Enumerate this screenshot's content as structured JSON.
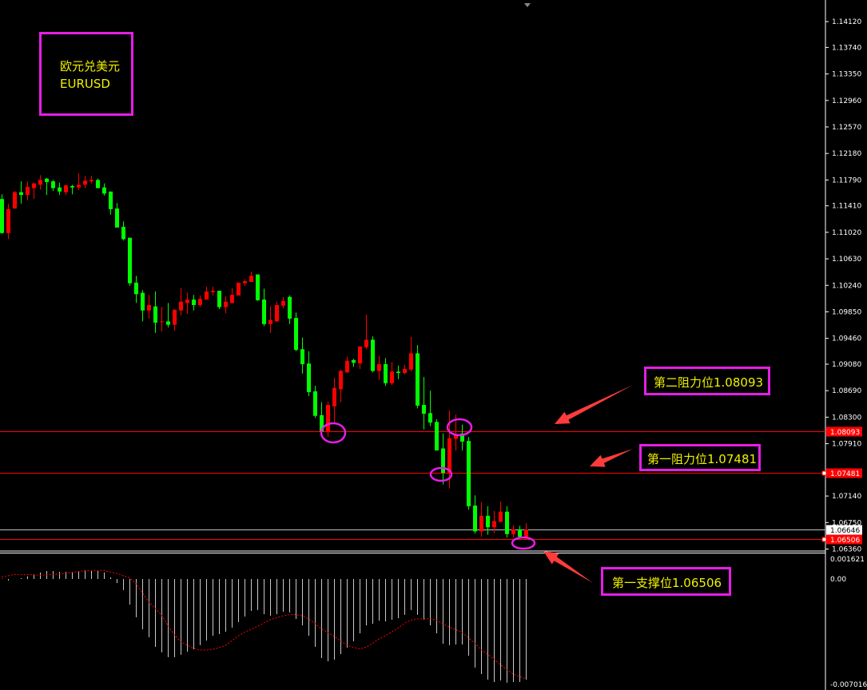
{
  "chart_data": {
    "type": "candlestick",
    "symbol_label": "欧元兑美元",
    "symbol": "EURUSD",
    "up_color": "#ff0000",
    "down_color": "#00ff00",
    "price_axis": {
      "range": [
        1.063,
        1.142
      ],
      "ticks": [
        "1.14120",
        "1.13740",
        "1.13350",
        "1.12960",
        "1.12570",
        "1.12180",
        "1.11790",
        "1.11410",
        "1.11020",
        "1.10630",
        "1.10240",
        "1.09850",
        "1.09460",
        "1.09080",
        "1.08690",
        "1.08300",
        "1.07910",
        "1.07140",
        "1.06750",
        "1.06360"
      ]
    },
    "candles_ohlc": [
      [
        1.1151,
        1.1158,
        1.11,
        1.1101
      ],
      [
        1.1101,
        1.1144,
        1.1092,
        1.1136
      ],
      [
        1.1137,
        1.1163,
        1.1137,
        1.1161
      ],
      [
        1.1161,
        1.1177,
        1.1144,
        1.1157
      ],
      [
        1.1157,
        1.1177,
        1.1149,
        1.1169
      ],
      [
        1.1167,
        1.1175,
        1.1151,
        1.1174
      ],
      [
        1.1172,
        1.1186,
        1.1165,
        1.1179
      ],
      [
        1.1181,
        1.1182,
        1.1157,
        1.1176
      ],
      [
        1.1177,
        1.1179,
        1.1163,
        1.1167
      ],
      [
        1.1168,
        1.1175,
        1.1157,
        1.1162
      ],
      [
        1.1161,
        1.1172,
        1.1157,
        1.1171
      ],
      [
        1.117,
        1.1172,
        1.1158,
        1.1168
      ],
      [
        1.1168,
        1.1189,
        1.1164,
        1.1172
      ],
      [
        1.1172,
        1.1185,
        1.1167,
        1.1178
      ],
      [
        1.1177,
        1.1185,
        1.1174,
        1.1179
      ],
      [
        1.1179,
        1.1181,
        1.1167,
        1.1167
      ],
      [
        1.1168,
        1.1174,
        1.1156,
        1.1159
      ],
      [
        1.1162,
        1.1162,
        1.1128,
        1.1136
      ],
      [
        1.1137,
        1.1145,
        1.1109,
        1.1109
      ],
      [
        1.111,
        1.1118,
        1.109,
        1.1092
      ],
      [
        1.1094,
        1.1094,
        1.1023,
        1.1027
      ],
      [
        1.1028,
        1.1038,
        1.0998,
        1.1011
      ],
      [
        1.1013,
        1.1017,
        1.0971,
        1.0987
      ],
      [
        1.0987,
        1.101,
        1.0975,
        1.0995
      ],
      [
        1.0993,
        1.1015,
        1.0954,
        1.0969
      ],
      [
        1.097,
        1.0992,
        1.0956,
        1.0971
      ],
      [
        1.0971,
        1.0998,
        1.0962,
        1.0966
      ],
      [
        1.0966,
        1.0989,
        1.0957,
        1.0988
      ],
      [
        1.0987,
        1.102,
        1.098,
        1.1
      ],
      [
        1.0998,
        1.1013,
        1.0982,
        1.1003
      ],
      [
        1.1003,
        1.101,
        1.0987,
        1.0995
      ],
      [
        1.0995,
        1.1009,
        1.0992,
        1.1004
      ],
      [
        1.1003,
        1.1022,
        1.1003,
        1.1015
      ],
      [
        1.1014,
        1.1022,
        1.1009,
        1.1016
      ],
      [
        1.1016,
        1.1016,
        1.0989,
        1.0992
      ],
      [
        1.0992,
        1.1008,
        1.0983,
        1.1
      ],
      [
        1.0998,
        1.102,
        1.0997,
        1.101
      ],
      [
        1.1009,
        1.1028,
        1.1009,
        1.1028
      ],
      [
        1.1027,
        1.1033,
        1.1023,
        1.103
      ],
      [
        1.1029,
        1.1044,
        1.1029,
        1.1038
      ],
      [
        1.104,
        1.104,
        1.1001,
        1.1002
      ],
      [
        1.1003,
        1.1019,
        1.0964,
        1.0967
      ],
      [
        1.0967,
        1.0993,
        1.0954,
        1.0973
      ],
      [
        1.0971,
        1.1,
        1.097,
        1.0995
      ],
      [
        1.0994,
        1.1007,
        1.099,
        1.1001
      ],
      [
        1.1007,
        1.1009,
        1.0967,
        1.0975
      ],
      [
        1.0976,
        1.0984,
        1.0927,
        1.0929
      ],
      [
        1.093,
        1.0947,
        1.0894,
        1.0908
      ],
      [
        1.0909,
        1.0927,
        1.0861,
        1.0867
      ],
      [
        1.0868,
        1.0876,
        1.0829,
        1.0832
      ],
      [
        1.0833,
        1.0852,
        1.0809,
        1.0809
      ],
      [
        1.0808,
        1.0853,
        1.0801,
        1.0848
      ],
      [
        1.0846,
        1.0888,
        1.0822,
        1.0873
      ],
      [
        1.0871,
        1.09,
        1.0852,
        1.0898
      ],
      [
        1.0896,
        1.0919,
        1.0895,
        1.0913
      ],
      [
        1.0914,
        1.0916,
        1.0904,
        1.091
      ],
      [
        1.0909,
        1.0934,
        1.0901,
        1.0934
      ],
      [
        1.0933,
        1.0981,
        1.093,
        1.0944
      ],
      [
        1.0944,
        1.0949,
        1.0896,
        1.0898
      ],
      [
        1.0898,
        1.092,
        1.0885,
        1.0908
      ],
      [
        1.0908,
        1.0917,
        1.0876,
        1.088
      ],
      [
        1.088,
        1.0911,
        1.0877,
        1.0897
      ],
      [
        1.0897,
        1.0906,
        1.0886,
        1.0895
      ],
      [
        1.0895,
        1.0907,
        1.0893,
        1.0901
      ],
      [
        1.09,
        1.0948,
        1.0897,
        1.0924
      ],
      [
        1.0924,
        1.0936,
        1.0843,
        1.0847
      ],
      [
        1.0848,
        1.0889,
        1.0812,
        1.0835
      ],
      [
        1.0836,
        1.0869,
        1.0817,
        1.0822
      ],
      [
        1.0823,
        1.0827,
        1.0781,
        1.0781
      ],
      [
        1.0784,
        1.0806,
        1.0731,
        1.0748
      ],
      [
        1.0748,
        1.084,
        1.0725,
        1.0799
      ],
      [
        1.0798,
        1.0834,
        1.0781,
        1.0804
      ],
      [
        1.0806,
        1.0819,
        1.0781,
        1.0794
      ],
      [
        1.0795,
        1.0801,
        1.0694,
        1.0699
      ],
      [
        1.07,
        1.0715,
        1.0659,
        1.0662
      ],
      [
        1.0662,
        1.0705,
        1.0654,
        1.0685
      ],
      [
        1.0685,
        1.0699,
        1.0657,
        1.0668
      ],
      [
        1.0668,
        1.0692,
        1.0659,
        1.0677
      ],
      [
        1.0676,
        1.0706,
        1.0676,
        1.0691
      ],
      [
        1.0691,
        1.0699,
        1.0653,
        1.0658
      ],
      [
        1.0658,
        1.0671,
        1.0653,
        1.0665
      ],
      [
        1.0665,
        1.067,
        1.0654,
        1.0654
      ],
      [
        1.0654,
        1.0674,
        1.0654,
        1.06646
      ]
    ],
    "levels": [
      {
        "price": 1.08093,
        "label": "1.08093",
        "color": "#ff0000",
        "annotation": "第二阻力位1.08093"
      },
      {
        "price": 1.07481,
        "label": "1.07481",
        "color": "#ff0000",
        "annotation": "第一阻力位1.07481"
      },
      {
        "price": 1.06506,
        "label": "1.06506",
        "color": "#ff0000",
        "annotation": "第一支撑位1.06506"
      }
    ],
    "current_price": {
      "price": 1.06646,
      "label": "1.06646",
      "color": "#c0c0c0"
    },
    "indicator": {
      "type": "macd",
      "axis_labels": [
        "0.001621",
        "0.00",
        "-0.007016"
      ],
      "range": [
        -0.007016,
        0.001621
      ],
      "histogram_color": "#c8c8c8",
      "signal_color": "#ff0000",
      "histogram": [
        2e-05,
        -0.0001,
        0,
        5e-05,
        0.00018,
        0.00032,
        0.00043,
        0.00053,
        0.00053,
        0.00048,
        0.00048,
        0.00048,
        0.00053,
        0.00059,
        0.00053,
        0.00053,
        0.00043,
        0.00011,
        -0.00027,
        -0.00074,
        -0.0017,
        -0.00255,
        -0.00335,
        -0.00388,
        -0.00452,
        -0.00489,
        -0.00521,
        -0.00521,
        -0.00505,
        -0.00484,
        -0.00468,
        -0.00441,
        -0.0041,
        -0.00378,
        -0.00367,
        -0.00351,
        -0.00324,
        -0.00287,
        -0.0025,
        -0.00213,
        -0.00207,
        -0.00234,
        -0.00245,
        -0.00234,
        -0.00218,
        -0.00223,
        -0.00266,
        -0.00309,
        -0.00378,
        -0.00452,
        -0.00527,
        -0.00548,
        -0.00537,
        -0.005,
        -0.00457,
        -0.00415,
        -0.00362,
        -0.00309,
        -0.00298,
        -0.00277,
        -0.00282,
        -0.00271,
        -0.00261,
        -0.00239,
        -0.00207,
        -0.00239,
        -0.00271,
        -0.00309,
        -0.00362,
        -0.00431,
        -0.00441,
        -0.00436,
        -0.00436,
        -0.00511,
        -0.0059,
        -0.00633,
        -0.0067,
        -0.00686,
        -0.00676,
        -0.00691,
        -0.00686,
        -0.00686,
        -0.0067
      ],
      "signal": [
        0.00014,
        0.00022,
        0.0003,
        0.0003,
        0.0003,
        0.00028,
        0.00025,
        0.00028,
        0.0003,
        0.00034,
        0.00037,
        0.00044,
        0.0005,
        0.00054,
        0.00057,
        0.00057,
        0.00057,
        0.00047,
        0.00037,
        0.00023,
        9e-05,
        -0.0003,
        -0.0009,
        -0.00151,
        -0.00195,
        -0.00239,
        -0.0031,
        -0.0037,
        -0.00417,
        -0.0044,
        -0.00463,
        -0.00473,
        -0.00474,
        -0.0047,
        -0.00457,
        -0.00443,
        -0.00412,
        -0.0038,
        -0.00355,
        -0.00335,
        -0.00316,
        -0.00293,
        -0.00271,
        -0.00258,
        -0.00245,
        -0.00238,
        -0.00236,
        -0.00245,
        -0.00265,
        -0.00295,
        -0.00332,
        -0.00356,
        -0.00381,
        -0.00413,
        -0.0044,
        -0.00456,
        -0.00465,
        -0.00455,
        -0.0043,
        -0.004,
        -0.00378,
        -0.00353,
        -0.00328,
        -0.00295,
        -0.00275,
        -0.00266,
        -0.00265,
        -0.00264,
        -0.00273,
        -0.00298,
        -0.00319,
        -0.00337,
        -0.00355,
        -0.0039,
        -0.00428,
        -0.0047,
        -0.005,
        -0.00532,
        -0.0057,
        -0.00604,
        -0.00633,
        -0.0065,
        -0.00665
      ]
    },
    "highlight_color": "#e61ee6",
    "annotation_text_color": "#f0f000",
    "arrow_color": "#ff3c3c"
  }
}
